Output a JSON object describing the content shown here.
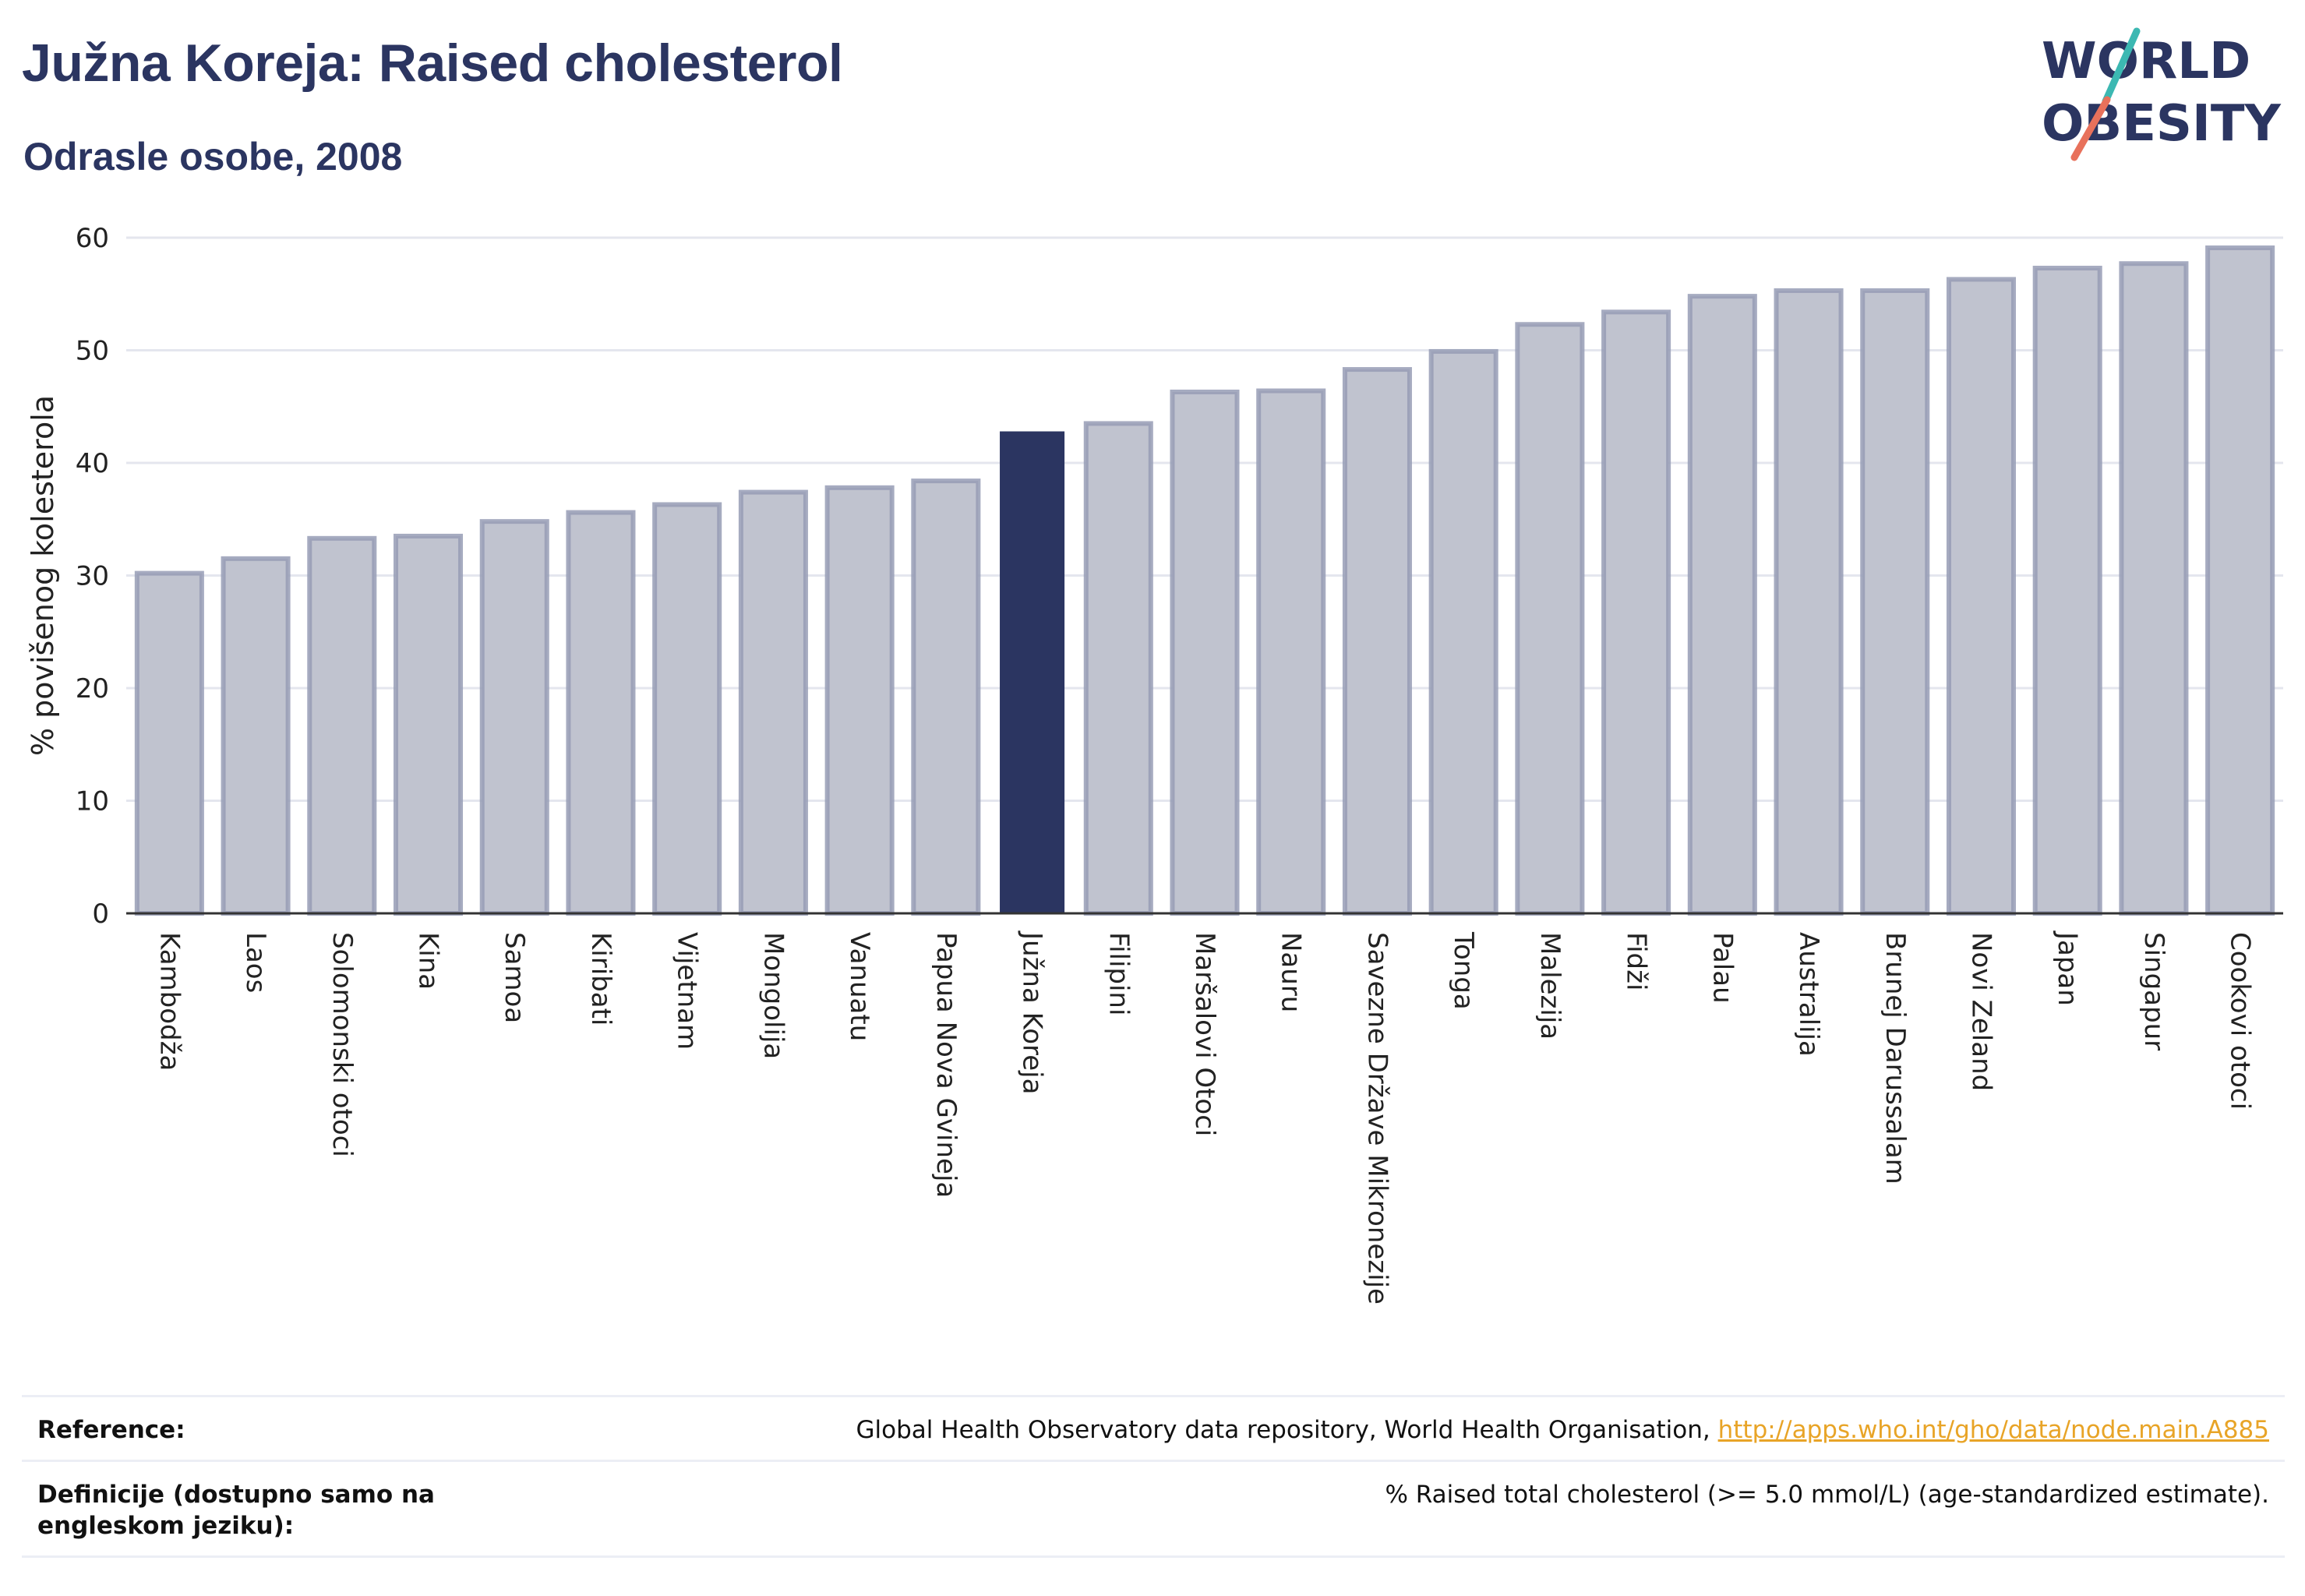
{
  "header": {
    "title": "Južna Koreja: Raised cholesterol",
    "subtitle": "Odrasle osobe, 2008"
  },
  "logo": {
    "line1": "WORLD",
    "line2": "OBESITY"
  },
  "colors": {
    "highlight": "#2b3561",
    "bar": "#c0c3cf",
    "bar_border": "#979cb5",
    "grid": "#e4e6ee",
    "link": "#e8a427",
    "logo_slash_teal": "#3cb8b2",
    "logo_slash_coral": "#e8715b"
  },
  "chart_data": {
    "type": "bar",
    "ylabel": "% povišenog kolesterola",
    "ylim": [
      0,
      60
    ],
    "yticks": [
      0,
      10,
      20,
      30,
      40,
      50,
      60
    ],
    "grid": true,
    "highlight_category": "Južna Koreja",
    "categories": [
      "Kambodža",
      "Laos",
      "Solomonski otoci",
      "Kina",
      "Samoa",
      "Kiribati",
      "Vijetnam",
      "Mongolija",
      "Vanuatu",
      "Papua Nova Gvineja",
      "Južna Koreja",
      "Filipini",
      "Maršalovi Otoci",
      "Nauru",
      "Savezne Države Mikronezije",
      "Tonga",
      "Malezija",
      "Fidži",
      "Palau",
      "Australija",
      "Brunej Darussalam",
      "Novi Zeland",
      "Japan",
      "Singapur",
      "Cookovi otoci"
    ],
    "values": [
      30.2,
      31.5,
      33.3,
      33.5,
      34.8,
      35.6,
      36.3,
      37.4,
      37.8,
      38.4,
      42.8,
      43.5,
      46.3,
      46.4,
      48.3,
      49.9,
      52.3,
      53.4,
      54.8,
      55.3,
      55.3,
      56.3,
      57.3,
      57.7,
      59.1
    ]
  },
  "footer": {
    "reference_label": "Reference:",
    "reference_text": "Global Health Observatory data repository, World Health Organisation, ",
    "reference_link": "http://apps.who.int/gho/data/node.main.A885",
    "definition_label": "Definicije (dostupno samo na engleskom jeziku):",
    "definition_text": "% Raised total cholesterol (>= 5.0 mmol/L) (age-standardized estimate)."
  }
}
